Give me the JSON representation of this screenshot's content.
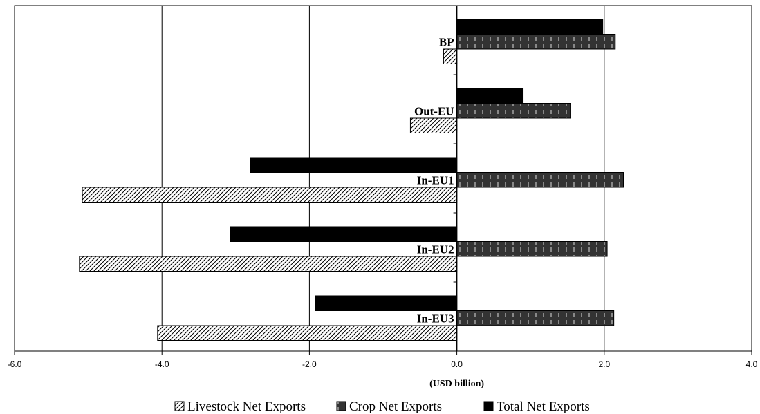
{
  "chart_data": {
    "type": "bar",
    "orientation": "horizontal",
    "categories": [
      "BP",
      "Out-EU",
      "In-EU1",
      "In-EU2",
      "In-EU3"
    ],
    "series": [
      {
        "name": "Livestock Net Exports",
        "values": [
          -0.18,
          -0.63,
          -5.08,
          -5.12,
          -4.06
        ],
        "fill": "diagonal-hatch",
        "color": "#000000"
      },
      {
        "name": "Crop Net Exports",
        "values": [
          2.15,
          1.54,
          2.26,
          2.04,
          2.13
        ],
        "fill": "dashed-dark",
        "color": "#333333"
      },
      {
        "name": "Total Net Exports",
        "values": [
          1.98,
          0.9,
          -2.8,
          -3.07,
          -1.92
        ],
        "fill": "solid",
        "color": "#000000"
      }
    ],
    "xlabel": "(USD billion)",
    "xlim": [
      -6,
      4
    ],
    "xticks": [
      -6,
      -4,
      -2,
      0,
      2,
      4
    ],
    "xtick_labels": [
      "-6.0",
      "-4.0",
      "-2.0",
      "0.0",
      "2.0",
      "4.0"
    ],
    "grid": "vertical",
    "legend": "bottom"
  }
}
